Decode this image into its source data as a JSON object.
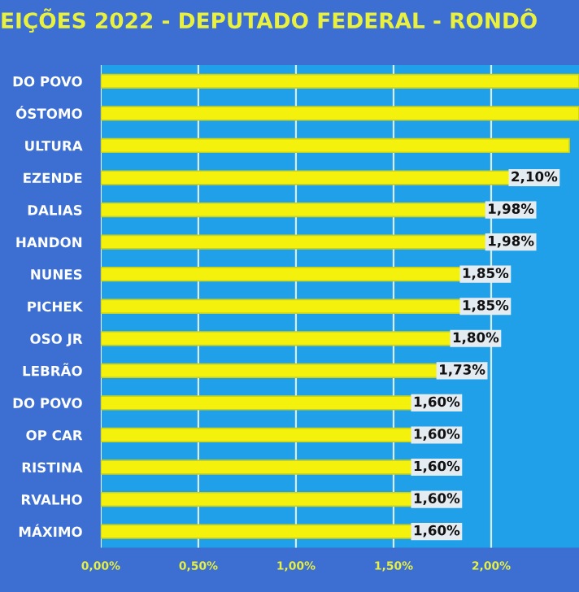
{
  "chart_data": {
    "type": "bar",
    "orientation": "horizontal",
    "title": "EIÇÕES 2022 - DEPUTADO FEDERAL - RONDÔ",
    "categories": [
      "DO POVO",
      "ÓSTOMO",
      "ULTURA",
      "EZENDE",
      "DALIAS",
      "HANDON",
      "NUNES",
      "PICHEK",
      "OSO JR",
      "LEBRÃO",
      "DO POVO",
      "OP CAR",
      "RISTINA",
      "RVALHO",
      "MÁXIMO"
    ],
    "values": [
      2.45,
      2.45,
      2.4,
      2.1,
      1.98,
      1.98,
      1.85,
      1.85,
      1.8,
      1.73,
      1.6,
      1.6,
      1.6,
      1.6,
      1.6
    ],
    "value_labels": [
      null,
      null,
      null,
      "2,10%",
      "1,98%",
      "1,98%",
      "1,85%",
      "1,85%",
      "1,80%",
      "1,73%",
      "1,60%",
      "1,60%",
      "1,60%",
      "1,60%",
      "1,60%"
    ],
    "color": "#f4f20c",
    "xlim": [
      0,
      2.45
    ],
    "xticks": [
      {
        "value": 0,
        "label": "0,00%"
      },
      {
        "value": 0.5,
        "label": "0,50%"
      },
      {
        "value": 1.0,
        "label": "1,00%"
      },
      {
        "value": 1.5,
        "label": "1,50%"
      },
      {
        "value": 2.0,
        "label": "2,00%"
      }
    ],
    "grid": "x"
  }
}
